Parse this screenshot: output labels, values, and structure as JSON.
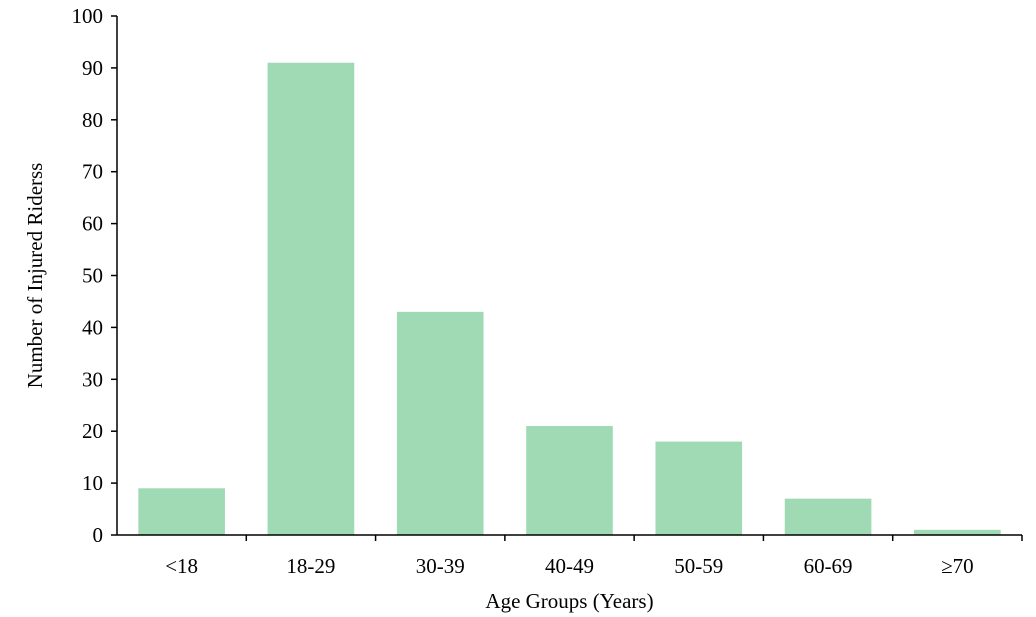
{
  "chart_data": {
    "type": "bar",
    "categories": [
      "<18",
      "18-29",
      "30-39",
      "40-49",
      "50-59",
      "60-69",
      "≥70"
    ],
    "values": [
      9,
      91,
      43,
      21,
      18,
      7,
      1
    ],
    "xlabel": "Age Groups (Years)",
    "ylabel": "Number of Injured Riderss",
    "ylim": [
      0,
      100
    ],
    "yticks": [
      0,
      10,
      20,
      30,
      40,
      50,
      60,
      70,
      80,
      90,
      100
    ],
    "grid": false,
    "bar_color": "#a0dab5"
  }
}
